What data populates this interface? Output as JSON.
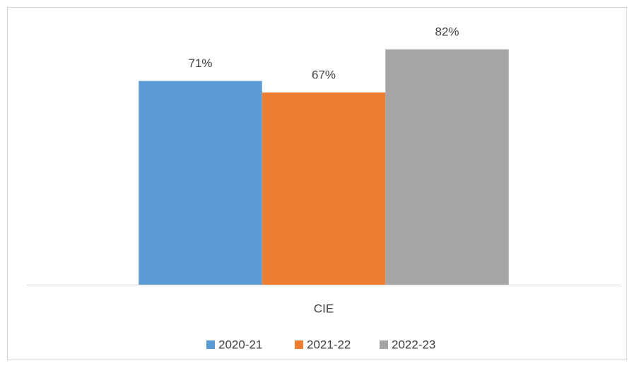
{
  "chart_data": {
    "type": "bar",
    "categories": [
      "CIE"
    ],
    "series": [
      {
        "name": "2020-21",
        "color": "#5b9bd5",
        "values": [
          71
        ],
        "value_labels": [
          "71%"
        ]
      },
      {
        "name": "2021-22",
        "color": "#ed7d31",
        "values": [
          67
        ],
        "value_labels": [
          "67%"
        ]
      },
      {
        "name": "2022-23",
        "color": "#a5a5a5",
        "values": [
          82
        ],
        "value_labels": [
          "82%"
        ]
      }
    ],
    "legend": "bottom"
  }
}
